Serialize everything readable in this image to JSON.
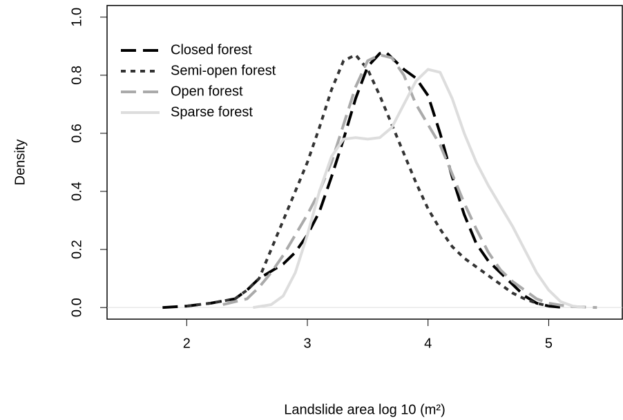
{
  "chart_data": {
    "type": "line",
    "xlabel": "Landslide area log 10 (m²)",
    "ylabel": "Density",
    "xlim": [
      1.34,
      5.61
    ],
    "ylim": [
      -0.04,
      1.04
    ],
    "xticks": [
      2,
      3,
      4,
      5
    ],
    "yticks": [
      {
        "value": 0,
        "label": "0.0"
      },
      {
        "value": 0.2,
        "label": "0.2"
      },
      {
        "value": 0.4,
        "label": "0.4"
      },
      {
        "value": 0.6,
        "label": "0.6"
      },
      {
        "value": 0.8,
        "label": "0.8"
      },
      {
        "value": 1,
        "label": "1.0"
      }
    ],
    "legend": "top-left",
    "series": [
      {
        "name": "Closed forest",
        "color": "#000000",
        "linestyle": "dashed",
        "x": [
          1.8,
          2.0,
          2.2,
          2.4,
          2.5,
          2.6,
          2.8,
          2.9,
          3.0,
          3.1,
          3.2,
          3.3,
          3.4,
          3.5,
          3.6,
          3.65,
          3.7,
          3.8,
          3.9,
          4.0,
          4.1,
          4.2,
          4.3,
          4.4,
          4.5,
          4.6,
          4.7,
          4.8,
          4.9,
          5.0,
          5.1
        ],
        "values": [
          0,
          0.005,
          0.015,
          0.03,
          0.06,
          0.1,
          0.15,
          0.19,
          0.25,
          0.33,
          0.45,
          0.58,
          0.72,
          0.83,
          0.875,
          0.88,
          0.86,
          0.82,
          0.79,
          0.73,
          0.6,
          0.45,
          0.32,
          0.22,
          0.16,
          0.12,
          0.08,
          0.04,
          0.015,
          0.005,
          0.001
        ]
      },
      {
        "name": "Semi-open forest",
        "color": "#333333",
        "linestyle": "dotted",
        "x": [
          2.0,
          2.2,
          2.4,
          2.5,
          2.6,
          2.7,
          2.8,
          2.9,
          3.0,
          3.1,
          3.2,
          3.3,
          3.4,
          3.5,
          3.6,
          3.7,
          3.8,
          3.9,
          4.0,
          4.1,
          4.2,
          4.3,
          4.4,
          4.5,
          4.6,
          4.7,
          4.8,
          4.9,
          5.0
        ],
        "values": [
          0.005,
          0.015,
          0.03,
          0.06,
          0.1,
          0.2,
          0.3,
          0.4,
          0.5,
          0.62,
          0.75,
          0.85,
          0.87,
          0.82,
          0.73,
          0.63,
          0.53,
          0.43,
          0.34,
          0.27,
          0.21,
          0.17,
          0.14,
          0.11,
          0.08,
          0.05,
          0.03,
          0.015,
          0.005
        ]
      },
      {
        "name": "Open forest",
        "color": "#aaaaaa",
        "linestyle": "dashed",
        "x": [
          2.3,
          2.5,
          2.6,
          2.7,
          2.8,
          2.9,
          3.0,
          3.1,
          3.2,
          3.3,
          3.4,
          3.5,
          3.6,
          3.7,
          3.8,
          3.9,
          4.0,
          4.1,
          4.2,
          4.3,
          4.4,
          4.5,
          4.6,
          4.7,
          4.8,
          4.9,
          5.0,
          5.1,
          5.2,
          5.4
        ],
        "values": [
          0.01,
          0.03,
          0.07,
          0.12,
          0.18,
          0.25,
          0.32,
          0.4,
          0.5,
          0.63,
          0.76,
          0.85,
          0.87,
          0.86,
          0.8,
          0.7,
          0.63,
          0.56,
          0.46,
          0.36,
          0.27,
          0.19,
          0.13,
          0.09,
          0.06,
          0.03,
          0.015,
          0.008,
          0.003,
          0
        ]
      },
      {
        "name": "Sparse forest",
        "color": "#dddddd",
        "linestyle": "solid",
        "x": [
          2.55,
          2.7,
          2.8,
          2.9,
          3.0,
          3.1,
          3.2,
          3.3,
          3.4,
          3.5,
          3.6,
          3.7,
          3.8,
          3.9,
          4.0,
          4.1,
          4.2,
          4.3,
          4.4,
          4.5,
          4.6,
          4.7,
          4.8,
          4.9,
          5.0,
          5.1,
          5.2,
          5.3
        ],
        "values": [
          0,
          0.01,
          0.04,
          0.12,
          0.25,
          0.4,
          0.52,
          0.58,
          0.585,
          0.58,
          0.585,
          0.62,
          0.7,
          0.78,
          0.82,
          0.81,
          0.72,
          0.6,
          0.5,
          0.42,
          0.35,
          0.28,
          0.2,
          0.12,
          0.06,
          0.02,
          0.005,
          0
        ]
      }
    ]
  }
}
